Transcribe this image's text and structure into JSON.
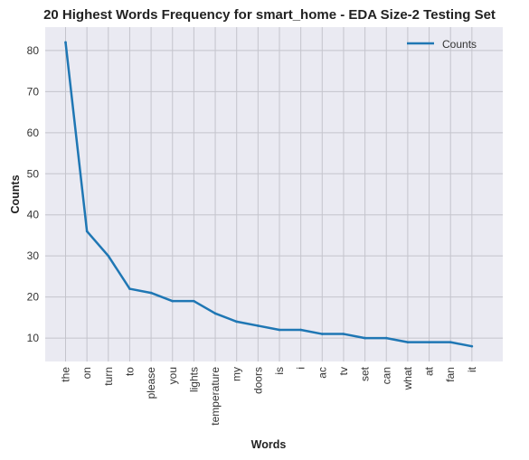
{
  "chart_data": {
    "type": "line",
    "title": "20 Highest Words Frequency for smart_home - EDA Size-2 Testing Set",
    "xlabel": "Words",
    "ylabel": "Counts",
    "categories": [
      "the",
      "on",
      "turn",
      "to",
      "please",
      "you",
      "lights",
      "temperature",
      "my",
      "doors",
      "is",
      "i",
      "ac",
      "tv",
      "set",
      "can",
      "what",
      "at",
      "fan",
      "it"
    ],
    "series": [
      {
        "name": "Counts",
        "values": [
          82,
          36,
          30,
          22,
          21,
          19,
          19,
          16,
          14,
          13,
          12,
          12,
          11,
          11,
          10,
          10,
          9,
          9,
          9,
          8
        ],
        "color": "#1f77b4"
      }
    ],
    "yticks": [
      10,
      20,
      30,
      40,
      50,
      60,
      70,
      80
    ],
    "ylim": [
      4.3,
      85.7
    ],
    "grid": true,
    "legend_position": "top-right",
    "background_color": "#eaeaf2",
    "grid_color": "#c4c4cc"
  }
}
